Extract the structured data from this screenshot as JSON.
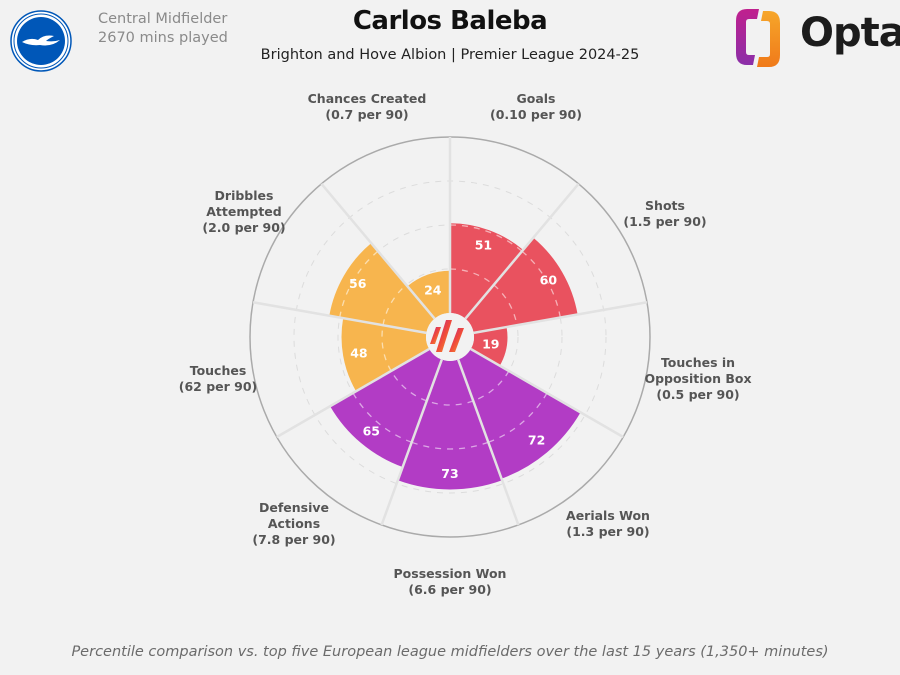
{
  "header": {
    "title": "Carlos Baleba",
    "subtitle": "Brighton and Hove Albion | Premier League 2024-25",
    "position": "Central Midfielder",
    "minutes": "2670 mins played",
    "club_badge_icon": "brighton-badge-icon",
    "brand": "Opta"
  },
  "footnote": "Percentile comparison vs. top five European league midfielders over the last 15 years (1,350+ minutes)",
  "colors": {
    "attacking": "#e9525f",
    "possession": "#f7b54e",
    "defending": "#b23cc5",
    "background": "#f2f2f2"
  },
  "chart_data": {
    "type": "polar-bar",
    "title": "Carlos Baleba",
    "subtitle": "Brighton and Hove Albion | Premier League 2024-25",
    "rlim": [
      0,
      100
    ],
    "grid_rings": [
      25,
      50,
      75
    ],
    "categories": [
      "Goals",
      "Shots",
      "Touches in Opposition Box",
      "Aerials Won",
      "Possession Won",
      "Defensive Actions",
      "Touches",
      "Dribbles Attempted",
      "Chances Created"
    ],
    "per90": [
      "0.10 per 90",
      "1.5 per 90",
      "0.5 per 90",
      "1.3 per 90",
      "6.6 per 90",
      "7.8 per 90",
      "62 per 90",
      "2.0 per 90",
      "0.7 per 90"
    ],
    "values": [
      51,
      60,
      19,
      72,
      73,
      65,
      48,
      56,
      24
    ],
    "groups": [
      "attacking",
      "attacking",
      "attacking",
      "defending",
      "defending",
      "defending",
      "possession",
      "possession",
      "possession"
    ]
  },
  "labels": [
    {
      "lines": [
        "Goals",
        "(0.10 per 90)"
      ]
    },
    {
      "lines": [
        "Shots",
        "(1.5 per 90)"
      ]
    },
    {
      "lines": [
        "Touches in",
        "Opposition Box",
        "(0.5 per 90)"
      ]
    },
    {
      "lines": [
        "Aerials Won",
        "(1.3 per 90)"
      ]
    },
    {
      "lines": [
        "Possession Won",
        "(6.6 per 90)"
      ]
    },
    {
      "lines": [
        "Defensive",
        "Actions",
        "(7.8 per 90)"
      ]
    },
    {
      "lines": [
        "Touches",
        "(62 per 90)"
      ]
    },
    {
      "lines": [
        "Dribbles",
        "Attempted",
        "(2.0 per 90)"
      ]
    },
    {
      "lines": [
        "Chances Created",
        "(0.7 per 90)"
      ]
    }
  ]
}
